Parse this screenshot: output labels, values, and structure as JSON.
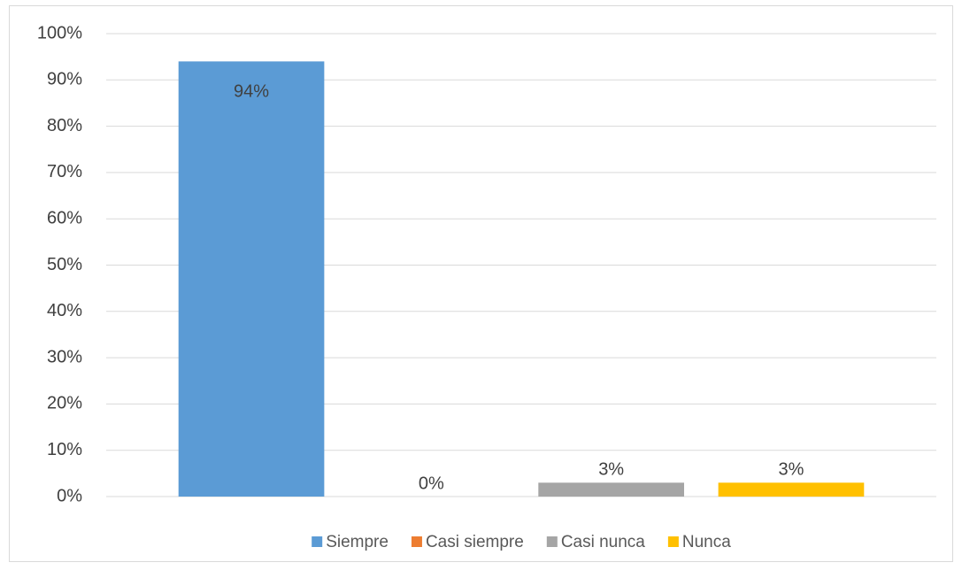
{
  "chart_data": {
    "type": "bar",
    "categories": [
      null
    ],
    "series": [
      {
        "name": "Siempre",
        "color": "#5b9bd5",
        "values": [
          94
        ],
        "value_labels": [
          "94%"
        ]
      },
      {
        "name": "Casi siempre",
        "color": "#ed7d31",
        "values": [
          0
        ],
        "value_labels": [
          "0%"
        ]
      },
      {
        "name": "Casi nunca",
        "color": "#a5a5a5",
        "values": [
          3
        ],
        "value_labels": [
          "3%"
        ]
      },
      {
        "name": "Nunca",
        "color": "#ffc000",
        "values": [
          3
        ],
        "value_labels": [
          "3%"
        ]
      }
    ],
    "ylim": [
      0,
      100
    ],
    "yticks": [
      {
        "value": 0,
        "label": "0%"
      },
      {
        "value": 10,
        "label": "10%"
      },
      {
        "value": 20,
        "label": "20%"
      },
      {
        "value": 30,
        "label": "30%"
      },
      {
        "value": 40,
        "label": "40%"
      },
      {
        "value": 50,
        "label": "50%"
      },
      {
        "value": 60,
        "label": "60%"
      },
      {
        "value": 70,
        "label": "70%"
      },
      {
        "value": 80,
        "label": "80%"
      },
      {
        "value": 90,
        "label": "90%"
      },
      {
        "value": 100,
        "label": "100%"
      }
    ],
    "grid": true,
    "legend": "bottom"
  }
}
